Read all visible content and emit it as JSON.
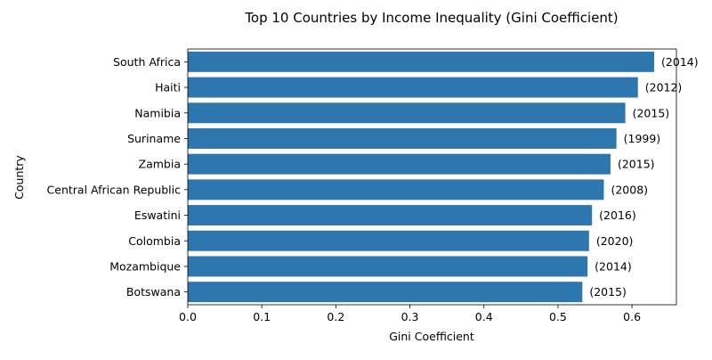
{
  "chart_data": {
    "type": "bar",
    "orientation": "horizontal",
    "title": "Top 10 Countries by Income Inequality (Gini Coefficient)",
    "xlabel": "Gini Coefficient",
    "ylabel": "Country",
    "xlim": [
      0,
      0.66
    ],
    "xticks": [
      0.0,
      0.1,
      0.2,
      0.3,
      0.4,
      0.5,
      0.6
    ],
    "xtick_labels": [
      "0.0",
      "0.1",
      "0.2",
      "0.3",
      "0.4",
      "0.5",
      "0.6"
    ],
    "grid": false,
    "bar_color": "#2e77ae",
    "categories": [
      "South Africa",
      "Haiti",
      "Namibia",
      "Suriname",
      "Zambia",
      "Central African Republic",
      "Eswatini",
      "Colombia",
      "Mozambique",
      "Botswana"
    ],
    "values": [
      0.63,
      0.608,
      0.591,
      0.579,
      0.571,
      0.562,
      0.546,
      0.542,
      0.54,
      0.533
    ],
    "bar_labels": [
      "(2014)",
      "(2012)",
      "(2015)",
      "(1999)",
      "(2015)",
      "(2008)",
      "(2016)",
      "(2020)",
      "(2014)",
      "(2015)"
    ]
  }
}
